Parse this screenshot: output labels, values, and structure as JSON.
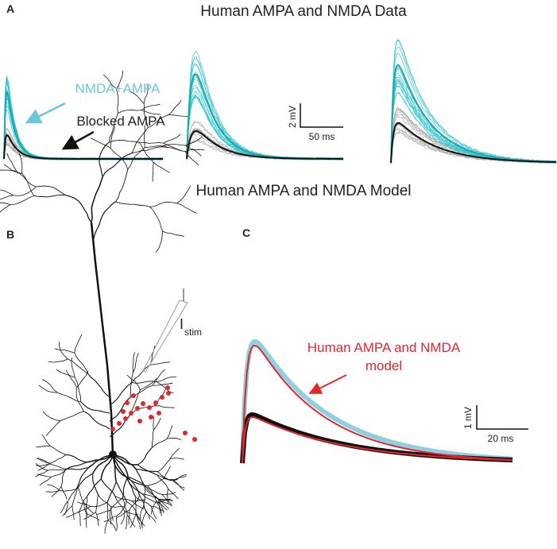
{
  "panel_a": {
    "label": "A",
    "title": "Human AMPA and NMDA Data",
    "cyan_label": "NMDA+AMPA",
    "black_label": "Blocked AMPA",
    "scale_y": "2 mV",
    "scale_x": "50 ms"
  },
  "middle_title": "Human AMPA and NMDA Model",
  "panel_b": {
    "label": "B",
    "stim_symbol": "I",
    "stim_subscript": "stim"
  },
  "panel_c": {
    "label": "C",
    "model_label_line1": "Human AMPA and NMDA",
    "model_label_line2": "model",
    "scale_y": "1 mV",
    "scale_x": "20 ms"
  }
}
